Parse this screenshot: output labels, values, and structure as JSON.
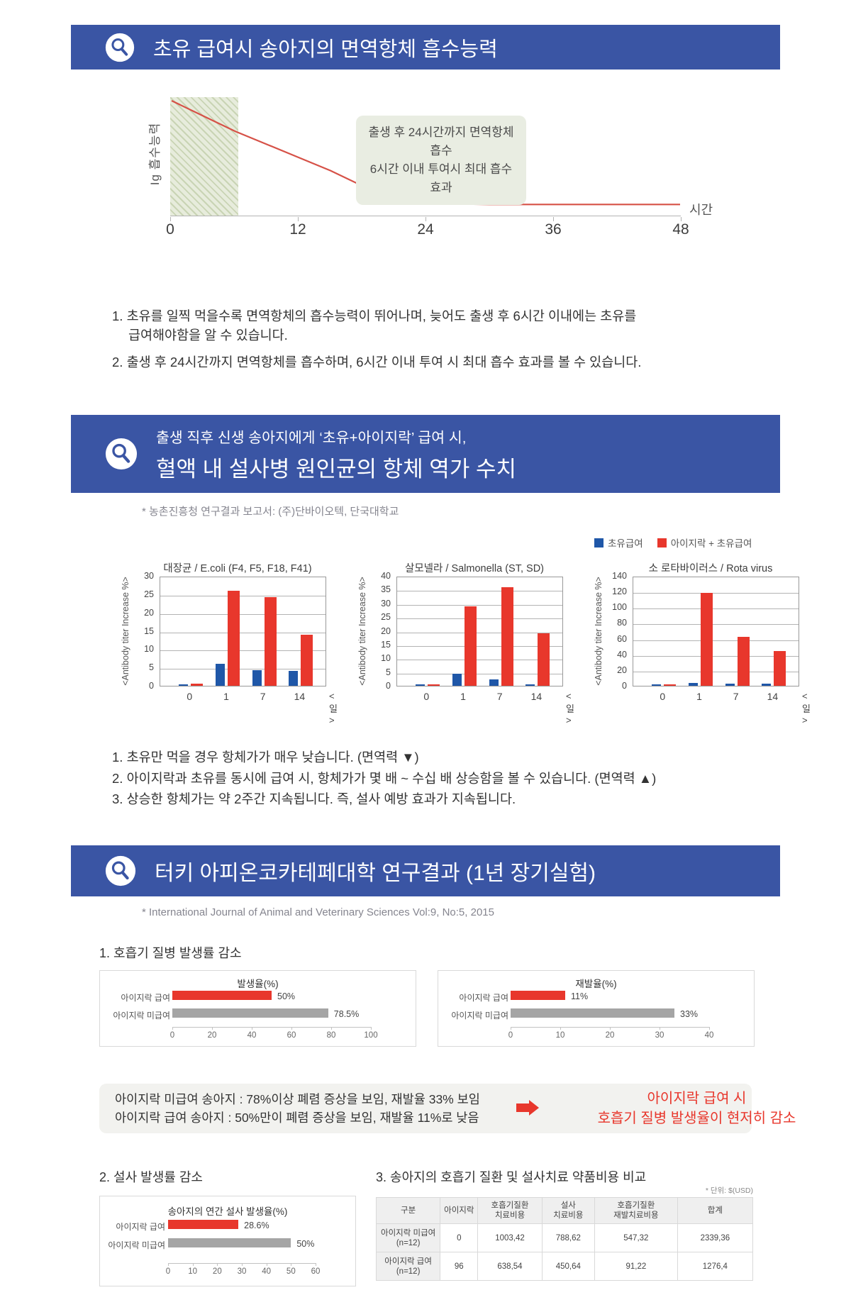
{
  "colors": {
    "header_blue": "#3A55A4",
    "bar_blue": "#1F57A8",
    "bar_red": "#E8372C",
    "bar_gray": "#A5A5A5",
    "line_red": "#D65147",
    "red_text": "#E8372C"
  },
  "section1": {
    "header": "초유 급여시 송아지의 면역항체 흡수능력",
    "chart_ylabel": "Ig 흡수능력",
    "chart_xunit": "시간",
    "callout_line1": "출생 후 24시간까지 면역항체 흡수",
    "callout_line2": "6시간 이내 투여시 최대 흡수 효과",
    "finding1_line1": "1. 초유를 일찍 먹을수록 면역항체의 흡수능력이 뛰어나며, 늦어도 출생 후 6시간 이내에는 초유를",
    "finding1_line2": "급여해야함을 알 수 있습니다.",
    "finding2": "2. 출생 후 24시간까지 면역항체를 흡수하며, 6시간 이내  투여 시 최대 흡수 효과를 볼 수 있습니다."
  },
  "section2": {
    "header_line1": "출생 직후 신생 송아지에게 ‘초유+아이지락’ 급여 시,",
    "header_line2": "혈액 내 설사병 원인균의 항체 역가 수치",
    "source_note": "* 농촌진흥청 연구결과 보고서: (주)단바이오텍, 단국대학교",
    "legend_series1": "초유급여",
    "legend_series2": "아이지락 + 초유급여",
    "finding1": "1. 초유만 먹을 경우 항체가가 매우 낮습니다. (면역력 ▼)",
    "finding2": "2. 아이지락과 초유를 동시에 급여 시, 항체가가 몇 배 ~ 수십 배 상승함을 볼 수 있습니다. (면역력 ▲)",
    "finding3": "3. 상승한 항체가는 약 2주간 지속됩니다. 즉, 설사 예방 효과가 지속됩니다."
  },
  "section3": {
    "header": "터키 아피온코카테페대학 연구결과 (1년 장기실험)",
    "source_note": "* International Journal of Animal and Veterinary Sciences Vol:9, No:5, 2015",
    "sub1_title": "1. 호흡기 질병 발생률 감소",
    "sub2_title": "2. 설사 발생률 감소",
    "sub3_title": "3. 송아지의 호흡기 질환 및 설사치료 약품비용 비교",
    "unit_note": "* 단위: $(USD)",
    "graybox_line1": "아이지락 미급여 송아지 : 78%이상 폐렴 증상을 보임, 재발율 33% 보임",
    "graybox_line2": "아이지락 급여 송아지 : 50%만이 폐렴 증상을 보임, 재발율 11%로 낮음",
    "graybox_red_line1": "아이지락 급여 시",
    "graybox_red_line2": "호흡기 질병 발생율이 현저히 감소",
    "table": {
      "headers": [
        "구분",
        "아이지락",
        "호흡기질환\n치료비용",
        "설사\n치료비용",
        "호흡기질환\n재발치료비용",
        "합계"
      ],
      "rows": [
        [
          "아이지락 미급여\n(n=12)",
          "0",
          "1003,42",
          "788,62",
          "547,32",
          "2339,36"
        ],
        [
          "아이지락 급여\n(n=12)",
          "96",
          "638,54",
          "450,64",
          "91,22",
          "1276,4"
        ]
      ]
    }
  },
  "chart_data": [
    {
      "id": "ig_absorption",
      "type": "line",
      "title": "",
      "ylabel": "Ig 흡수능력",
      "xlabel": "시간",
      "xlim": [
        0,
        48
      ],
      "x_ticks": [
        0,
        12,
        24,
        36,
        48
      ],
      "points": [
        [
          0,
          100
        ],
        [
          3,
          86
        ],
        [
          6,
          72
        ],
        [
          9,
          60
        ],
        [
          12,
          48
        ],
        [
          15,
          36
        ],
        [
          18,
          22
        ],
        [
          21,
          12
        ],
        [
          24,
          7
        ],
        [
          27,
          5.5
        ],
        [
          30,
          5
        ],
        [
          36,
          5
        ],
        [
          42,
          5
        ],
        [
          48,
          5
        ]
      ],
      "shaded_region": {
        "x0": 0,
        "x1": 6.4,
        "meaning": "첫 6시간",
        "style": "green-hatched"
      },
      "annotation_lines": [
        "출생 후 24시간까지 면역항체 흡수",
        "6시간 이내 투여시 최대 흡수 효과"
      ],
      "grid": false,
      "line_color": "#D65147"
    },
    {
      "id": "ecoli",
      "type": "bar",
      "title": "대장균 / E.coli (F4, F5, F18, F41)",
      "ylabel": "<Antibody titer Increase %>",
      "xunit": "<일>",
      "categories": [
        "0",
        "1",
        "7",
        "14"
      ],
      "ylim": [
        0,
        30
      ],
      "ytick_step": 5,
      "grid": true,
      "legend_position": "top-right-shared",
      "series": [
        {
          "name": "초유급여",
          "color": "#1F57A8",
          "values": [
            0.4,
            6,
            4.2,
            4
          ]
        },
        {
          "name": "아이지락 + 초유급여",
          "color": "#E8372C",
          "values": [
            0.5,
            26,
            24.2,
            14
          ]
        }
      ]
    },
    {
      "id": "salmonella",
      "type": "bar",
      "title": "살모넬라 / Salmonella (ST, SD)",
      "ylabel": "<Antibody titer Increase %>",
      "xunit": "<일>",
      "categories": [
        "0",
        "1",
        "7",
        "14"
      ],
      "ylim": [
        0,
        40
      ],
      "ytick_step": 5,
      "grid": true,
      "series": [
        {
          "name": "초유급여",
          "color": "#1F57A8",
          "values": [
            0.4,
            4.5,
            2.2,
            0.6
          ]
        },
        {
          "name": "아이지락 + 초유급여",
          "color": "#E8372C",
          "values": [
            0.4,
            29,
            36,
            19.2
          ]
        }
      ]
    },
    {
      "id": "rota",
      "type": "bar",
      "title": "소 로타바이러스 / Rota virus",
      "ylabel": "<Antibody titer Increase %>",
      "xunit": "<일>",
      "categories": [
        "0",
        "1",
        "7",
        "14"
      ],
      "ylim": [
        0,
        140
      ],
      "ytick_step": 20,
      "grid": true,
      "series": [
        {
          "name": "초유급여",
          "color": "#1F57A8",
          "values": [
            1.5,
            4,
            3,
            3
          ]
        },
        {
          "name": "아이지락 + 초유급여",
          "color": "#E8372C",
          "values": [
            2,
            118,
            62,
            44
          ]
        }
      ]
    },
    {
      "id": "resp_incidence",
      "type": "hbar",
      "title": "발생율(%)",
      "categories": [
        "아이지락 급여",
        "아이지락 미급여"
      ],
      "values": [
        50,
        78.5
      ],
      "value_labels": [
        "50%",
        "78.5%"
      ],
      "colors": [
        "#E8372C",
        "#A5A5A5"
      ],
      "xlim": [
        0,
        100
      ],
      "x_ticks": [
        0,
        20,
        40,
        60,
        80,
        100
      ]
    },
    {
      "id": "resp_recurrence",
      "type": "hbar",
      "title": "재발율(%)",
      "categories": [
        "아이지락 급여",
        "아이지락 미급여"
      ],
      "values": [
        11,
        33
      ],
      "value_labels": [
        "11%",
        "33%"
      ],
      "colors": [
        "#E8372C",
        "#A5A5A5"
      ],
      "xlim": [
        0,
        40
      ],
      "x_ticks": [
        0,
        10,
        20,
        30,
        40
      ]
    },
    {
      "id": "diarrhea_incidence",
      "type": "hbar",
      "title": "송아지의 연간 설사 발생율(%)",
      "categories": [
        "아이지락 급여",
        "아이지락 미급여"
      ],
      "values": [
        28.6,
        50
      ],
      "value_labels": [
        "28.6%",
        "50%"
      ],
      "colors": [
        "#E8372C",
        "#A5A5A5"
      ],
      "xlim": [
        0,
        60
      ],
      "x_ticks": [
        0,
        10,
        20,
        30,
        40,
        50,
        60
      ]
    }
  ]
}
